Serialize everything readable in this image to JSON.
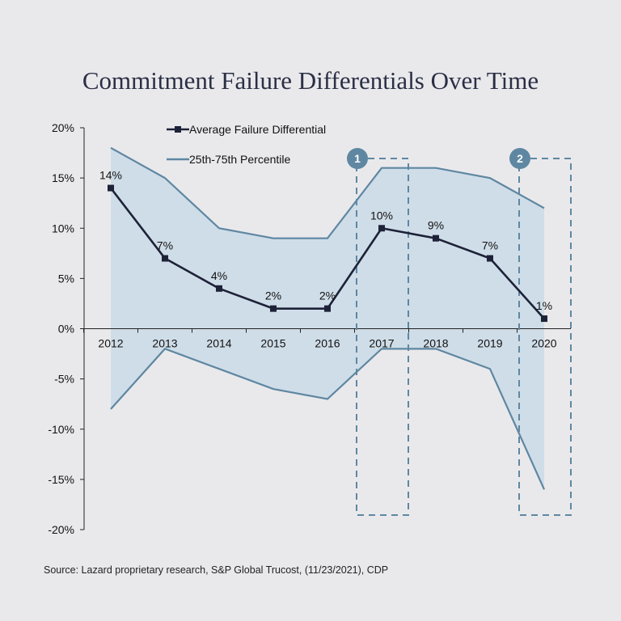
{
  "title": "Commitment Failure Differentials Over Time",
  "source": "Source:  Lazard proprietary research, S&P Global Trucost, (11/23/2021), CDP",
  "colors": {
    "background": "#e9e9ec",
    "band_fill": "#cfdde8",
    "band_line": "#5f87a1",
    "average_line": "#1d2238",
    "callout": "#5f87a1"
  },
  "chart_data": {
    "type": "line",
    "categories": [
      "2012",
      "2013",
      "2014",
      "2015",
      "2016",
      "2017",
      "2018",
      "2019",
      "2020"
    ],
    "ylim": [
      -20,
      20
    ],
    "y_ticks": [
      20,
      15,
      10,
      5,
      0,
      -5,
      -10,
      -15,
      -20
    ],
    "y_tick_labels": [
      "20%",
      "15%",
      "10%",
      "5%",
      "0%",
      "-5%",
      "-10%",
      "-15%",
      "-20%"
    ],
    "series": [
      {
        "name": "Average Failure Differential",
        "kind": "line-with-square-markers",
        "values": [
          14,
          7,
          4,
          2,
          2,
          10,
          9,
          7,
          1
        ],
        "labels": [
          "14%",
          "7%",
          "4%",
          "2%",
          "2%",
          "10%",
          "9%",
          "7%",
          "1%"
        ]
      },
      {
        "name": "25th-75th Percentile",
        "kind": "band",
        "upper": [
          18,
          15,
          10,
          9,
          9,
          16,
          16,
          15,
          12
        ],
        "lower": [
          -8,
          -2,
          -4,
          -6,
          -7,
          -2,
          -2,
          -4,
          -16
        ]
      }
    ],
    "legend_position": "top-left",
    "grid": false,
    "callouts": [
      {
        "label": "1",
        "category": "2017"
      },
      {
        "label": "2",
        "category": "2020"
      }
    ]
  }
}
